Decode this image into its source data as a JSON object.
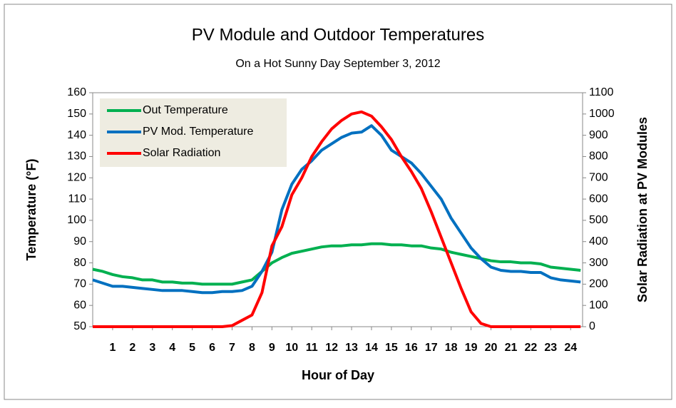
{
  "chart_data": {
    "type": "line",
    "title": "PV Module and Outdoor Temperatures",
    "subtitle": "On a Hot Sunny Day September 3, 2012",
    "x_label": "Hour of Day",
    "y_label": "Temperature (°F)",
    "y2_label": "Solar Radiation at PV Modules",
    "x": [
      0,
      0.5,
      1,
      1.5,
      2,
      2.5,
      3,
      3.5,
      4,
      4.5,
      5,
      5.5,
      6,
      6.5,
      7,
      7.5,
      8,
      8.5,
      9,
      9.5,
      10,
      10.5,
      11,
      11.5,
      12,
      12.5,
      13,
      13.5,
      14,
      14.5,
      15,
      15.5,
      16,
      16.5,
      17,
      17.5,
      18,
      18.5,
      19,
      19.5,
      20,
      20.5,
      21,
      21.5,
      22,
      22.5,
      23,
      23.5,
      24,
      24.5
    ],
    "series": [
      {
        "name": "Out Temperature",
        "color": "#00b050",
        "values": [
          77,
          76,
          74.5,
          73.5,
          73,
          72,
          72,
          71,
          71,
          70.5,
          70.5,
          70,
          70,
          70,
          70,
          71,
          72,
          76,
          80,
          82.5,
          84.5,
          85.5,
          86.5,
          87.5,
          88,
          88,
          88.5,
          88.5,
          89,
          89,
          88.5,
          88.5,
          88,
          88,
          87,
          86.5,
          85,
          84,
          83,
          82,
          81,
          80.5,
          80.5,
          80,
          80,
          79.5,
          78,
          77.5,
          77,
          76.5
        ]
      },
      {
        "name": "PV Mod. Temperature",
        "color": "#0070c0",
        "values": [
          72,
          70.5,
          69,
          69,
          68.5,
          68,
          67.5,
          67,
          67,
          67,
          66.5,
          66,
          66,
          66.5,
          66.5,
          67,
          69,
          76,
          85,
          105,
          117,
          124,
          128,
          133,
          136,
          139,
          141,
          141.5,
          144.5,
          140,
          133,
          130,
          127,
          122,
          116,
          110,
          101,
          94,
          87,
          82,
          78,
          76.5,
          76,
          76,
          75.5,
          75.5,
          73,
          72,
          71.5,
          71
        ]
      },
      {
        "name": "Solar Radiation",
        "color": "#ff0000",
        "axis": "y2",
        "values": [
          0,
          0,
          0,
          0,
          0,
          0,
          0,
          0,
          0,
          0,
          0,
          0,
          0,
          0,
          5,
          30,
          55,
          160,
          380,
          470,
          620,
          700,
          800,
          870,
          930,
          970,
          1000,
          1010,
          990,
          940,
          880,
          800,
          730,
          650,
          540,
          420,
          300,
          180,
          70,
          15,
          0,
          0,
          0,
          0,
          0,
          0,
          0,
          0,
          0,
          0
        ]
      }
    ],
    "xlim": [
      0,
      24.6
    ],
    "xticks": [
      1,
      2,
      3,
      4,
      5,
      6,
      7,
      8,
      9,
      10,
      11,
      12,
      13,
      14,
      15,
      16,
      17,
      18,
      19,
      20,
      21,
      22,
      23,
      24
    ],
    "ylim": [
      50,
      160
    ],
    "yticks": [
      50,
      60,
      70,
      80,
      90,
      100,
      110,
      120,
      130,
      140,
      150,
      160
    ],
    "y2lim": [
      0,
      1100
    ],
    "y2ticks": [
      0,
      100,
      200,
      300,
      400,
      500,
      600,
      700,
      800,
      900,
      1000,
      1100
    ],
    "legend": "upper left"
  }
}
